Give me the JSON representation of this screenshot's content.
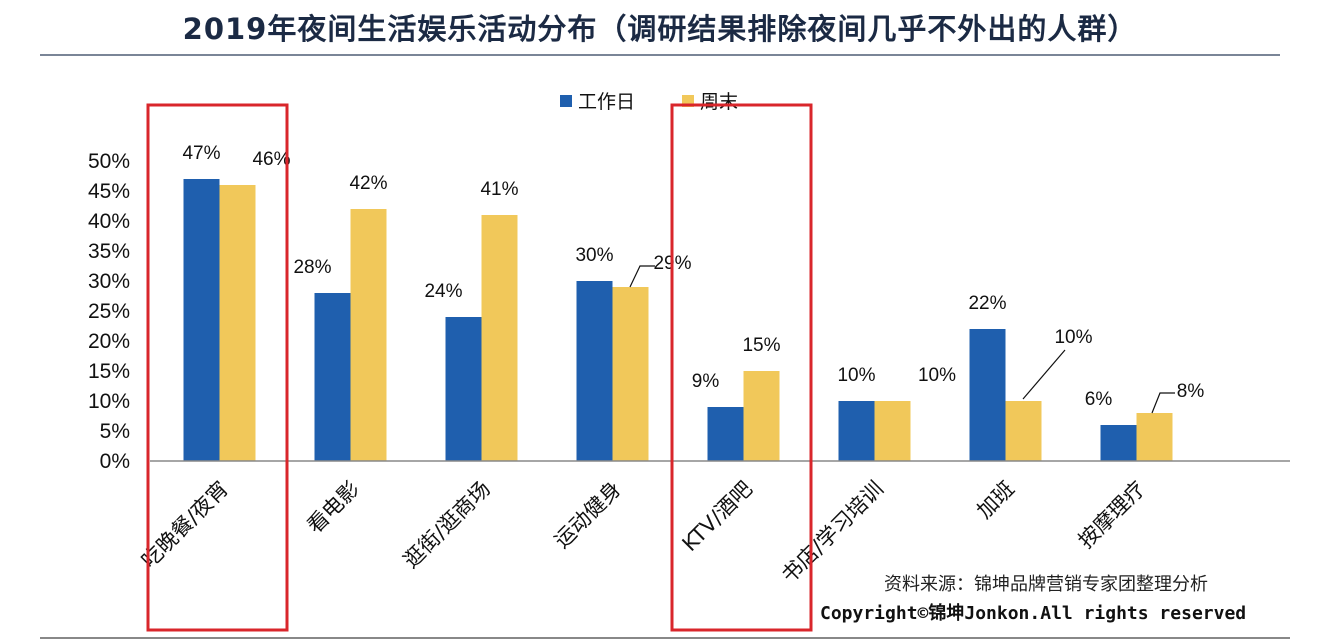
{
  "title": "2019年夜间生活娱乐活动分布（调研结果排除夜间几乎不外出的人群）",
  "source": "资料来源：锦坤品牌营销专家团整理分析",
  "copyright": "Copyright©锦坤Jonkon.All rights reserved",
  "colors": {
    "weekday": "#1f5fae",
    "weekend": "#f1c85a",
    "highlight": "#d9262b",
    "axis": "#888888"
  },
  "chart_data": {
    "type": "bar",
    "categories": [
      "吃晚餐/夜宵",
      "看电影",
      "逛街/逛商场",
      "运动健身",
      "KTV/酒吧",
      "书店/学习培训",
      "加班",
      "按摩理疗"
    ],
    "series": [
      {
        "name": "工作日",
        "values": [
          47,
          28,
          24,
          30,
          9,
          10,
          22,
          6
        ],
        "labels": [
          "47%",
          "28%",
          "24%",
          "30%",
          "9%",
          "10%",
          "22%",
          "6%"
        ]
      },
      {
        "name": "周末",
        "values": [
          46,
          42,
          41,
          29,
          15,
          10,
          10,
          8
        ],
        "labels": [
          "46%",
          "42%",
          "41%",
          "29%",
          "15%",
          "",
          "10%",
          "8%"
        ]
      }
    ],
    "ylim": [
      0,
      50
    ],
    "yticks": [
      "0%",
      "5%",
      "10%",
      "15%",
      "20%",
      "25%",
      "30%",
      "35%",
      "40%",
      "45%",
      "50%"
    ],
    "extra_labels": [
      "10%"
    ],
    "legend_position": "top-center",
    "grid": false,
    "highlighted_categories": [
      "吃晚餐/夜宵",
      "KTV/酒吧"
    ]
  }
}
